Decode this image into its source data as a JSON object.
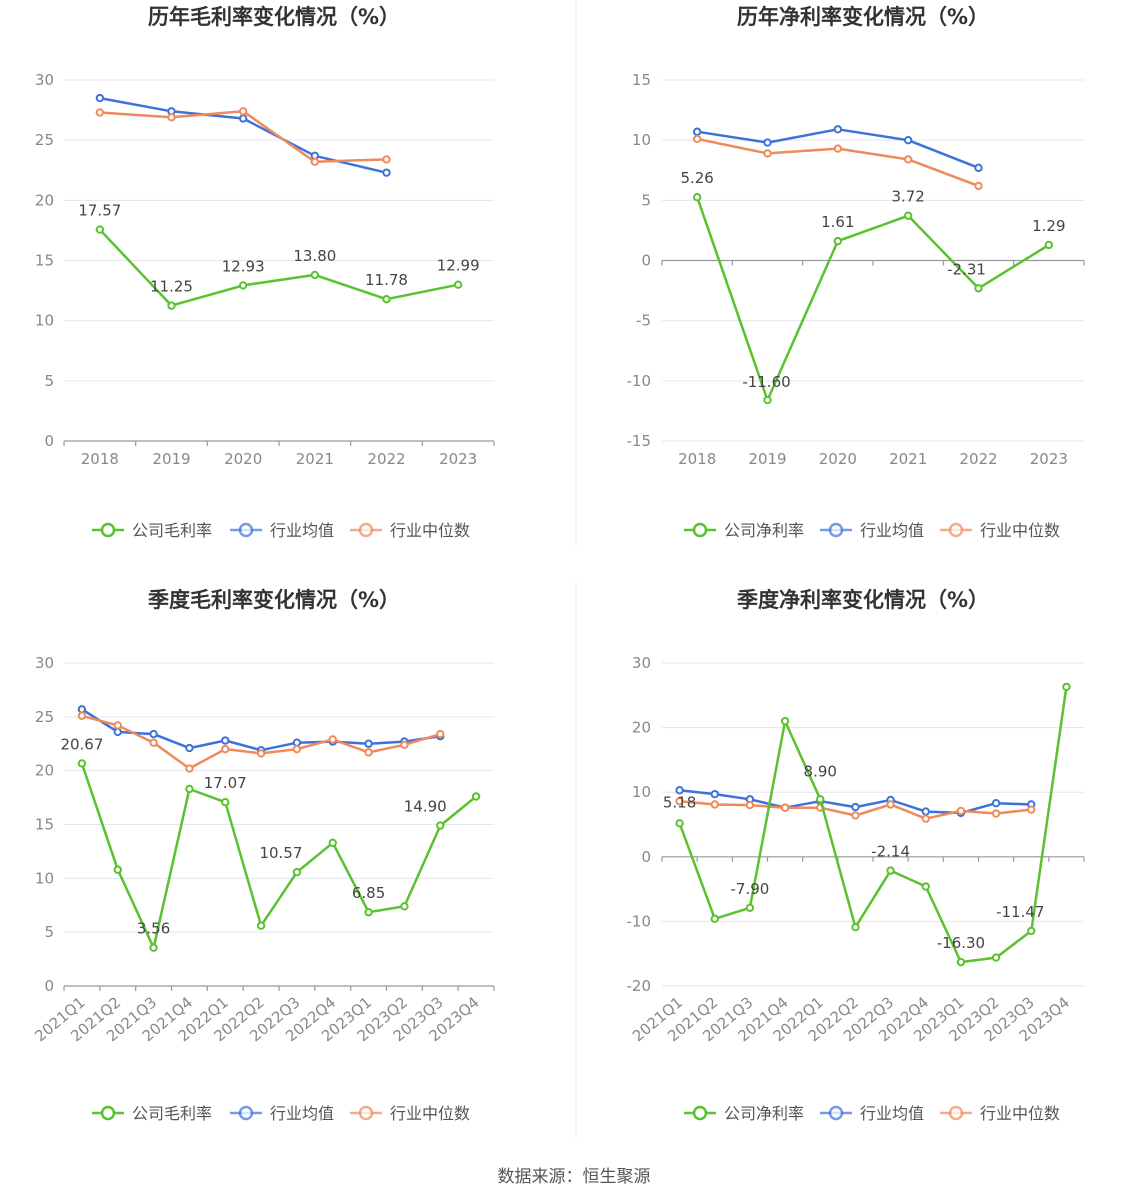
{
  "colors": {
    "company": "#59c22e",
    "average": "#3d72db",
    "median": "#ef8a5b",
    "grid": "#e3e6f0"
  },
  "legend_labels": {
    "average": "行业均值",
    "median": "行业中位数"
  },
  "source": "数据来源：恒生聚源",
  "chart_data": [
    {
      "type": "line",
      "title": "历年毛利率变化情况（%）",
      "categories": [
        "2018",
        "2019",
        "2020",
        "2021",
        "2022",
        "2023"
      ],
      "ylim": [
        0,
        30
      ],
      "yticks": [
        0,
        5,
        10,
        15,
        20,
        25,
        30
      ],
      "series": [
        {
          "name": "公司毛利率",
          "key": "company",
          "values": [
            17.57,
            11.25,
            12.93,
            13.8,
            11.78,
            12.99
          ],
          "labels": [
            "17.57",
            "11.25",
            "12.93",
            "13.80",
            "11.78",
            "12.99"
          ]
        },
        {
          "name": "行业均值",
          "key": "average",
          "values": [
            28.5,
            27.4,
            26.8,
            23.7,
            22.3,
            null
          ]
        },
        {
          "name": "行业中位数",
          "key": "median",
          "values": [
            27.3,
            26.9,
            27.4,
            23.2,
            23.4,
            null
          ]
        }
      ]
    },
    {
      "type": "line",
      "title": "历年净利率变化情况（%）",
      "categories": [
        "2018",
        "2019",
        "2020",
        "2021",
        "2022",
        "2023"
      ],
      "ylim": [
        -15,
        15
      ],
      "yticks": [
        -15,
        -10,
        -5,
        0,
        5,
        10,
        15
      ],
      "series": [
        {
          "name": "公司净利率",
          "key": "company",
          "values": [
            5.26,
            -11.6,
            1.61,
            3.72,
            -2.31,
            1.29
          ],
          "labels": [
            "5.26",
            "-11.60",
            "1.61",
            "3.72",
            "-2.31",
            "1.29"
          ]
        },
        {
          "name": "行业均值",
          "key": "average",
          "values": [
            10.7,
            9.8,
            10.9,
            10.0,
            7.7,
            null
          ]
        },
        {
          "name": "行业中位数",
          "key": "median",
          "values": [
            10.1,
            8.9,
            9.3,
            8.4,
            6.2,
            null
          ]
        }
      ]
    },
    {
      "type": "line",
      "title": "季度毛利率变化情况（%）",
      "categories": [
        "2021Q1",
        "2021Q2",
        "2021Q3",
        "2021Q4",
        "2022Q1",
        "2022Q2",
        "2022Q3",
        "2022Q4",
        "2023Q1",
        "2023Q2",
        "2023Q3",
        "2023Q4"
      ],
      "ylim": [
        0,
        30
      ],
      "yticks": [
        0,
        5,
        10,
        15,
        20,
        25,
        30
      ],
      "series": [
        {
          "name": "公司毛利率",
          "key": "company",
          "values": [
            20.67,
            10.8,
            3.56,
            18.3,
            17.07,
            5.6,
            10.57,
            13.3,
            6.85,
            7.4,
            14.9,
            17.6
          ],
          "labels": [
            "20.67",
            "",
            "3.56",
            "",
            "17.07",
            "",
            "10.57",
            "",
            "6.85",
            "",
            "14.90",
            ""
          ]
        },
        {
          "name": "行业均值",
          "key": "average",
          "values": [
            25.7,
            23.6,
            23.4,
            22.1,
            22.8,
            21.9,
            22.6,
            22.7,
            22.5,
            22.7,
            23.2,
            null
          ]
        },
        {
          "name": "行业中位数",
          "key": "median",
          "values": [
            25.1,
            24.2,
            22.6,
            20.2,
            22.0,
            21.6,
            22.0,
            22.9,
            21.7,
            22.4,
            23.4,
            null
          ]
        }
      ]
    },
    {
      "type": "line",
      "title": "季度净利率变化情况（%）",
      "categories": [
        "2021Q1",
        "2021Q2",
        "2021Q3",
        "2021Q4",
        "2022Q1",
        "2022Q2",
        "2022Q3",
        "2022Q4",
        "2023Q1",
        "2023Q2",
        "2023Q3",
        "2023Q4"
      ],
      "ylim": [
        -20,
        30
      ],
      "yticks": [
        -20,
        -10,
        0,
        10,
        20,
        30
      ],
      "series": [
        {
          "name": "公司净利率",
          "key": "company",
          "values": [
            5.18,
            -9.6,
            -7.9,
            21.0,
            8.9,
            -10.9,
            -2.14,
            -4.6,
            -16.3,
            -15.6,
            -11.47,
            26.3
          ],
          "labels": [
            "5.18",
            "",
            "-7.90",
            "",
            "8.90",
            "",
            "-2.14",
            "",
            "-16.30",
            "",
            "-11.47",
            ""
          ]
        },
        {
          "name": "行业均值",
          "key": "average",
          "values": [
            10.3,
            9.7,
            8.9,
            7.6,
            8.6,
            7.7,
            8.8,
            7.0,
            6.8,
            8.3,
            8.1,
            null
          ]
        },
        {
          "name": "行业中位数",
          "key": "median",
          "values": [
            8.6,
            8.1,
            8.0,
            7.6,
            7.6,
            6.4,
            8.1,
            5.9,
            7.1,
            6.7,
            7.3,
            null
          ]
        }
      ]
    }
  ]
}
